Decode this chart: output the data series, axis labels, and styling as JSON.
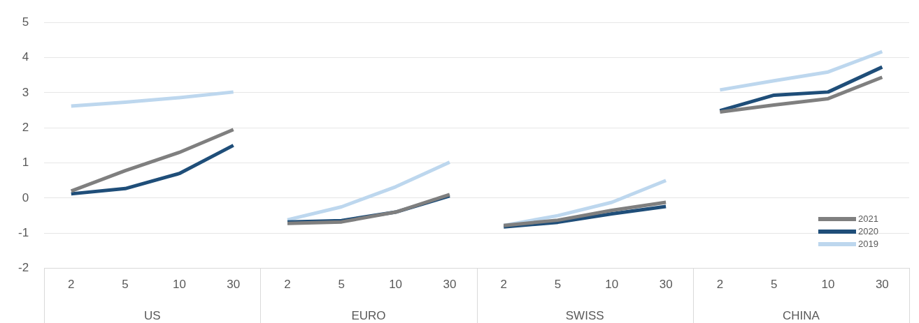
{
  "chart_data": {
    "type": "line",
    "categories": [
      "2",
      "5",
      "10",
      "30",
      "2",
      "5",
      "10",
      "30",
      "2",
      "5",
      "10",
      "30",
      "2",
      "5",
      "10",
      "30"
    ],
    "annotations": [
      "US",
      "EURO",
      "SWISS",
      "CHINA"
    ],
    "series": [
      {
        "name": "2021",
        "color": "#7f7f7f",
        "values": [
          0.2,
          0.78,
          1.3,
          1.95,
          -0.72,
          -0.68,
          -0.4,
          0.1,
          -0.78,
          -0.63,
          -0.35,
          -0.12,
          2.45,
          2.65,
          2.83,
          3.44
        ]
      },
      {
        "name": "2020",
        "color": "#1f4e79",
        "values": [
          0.12,
          0.27,
          0.7,
          1.5,
          -0.68,
          -0.64,
          -0.4,
          0.06,
          -0.82,
          -0.69,
          -0.45,
          -0.24,
          2.49,
          2.93,
          3.02,
          3.73
        ]
      },
      {
        "name": "2019",
        "color": "#bdd7ee",
        "values": [
          2.62,
          2.73,
          2.86,
          3.02,
          -0.62,
          -0.25,
          0.32,
          1.02,
          -0.78,
          -0.5,
          -0.12,
          0.5,
          3.08,
          3.34,
          3.59,
          4.17
        ]
      }
    ],
    "ylim": [
      -2,
      5
    ],
    "yticks": [
      -2,
      -1,
      0,
      1,
      2,
      3,
      4,
      5
    ],
    "grid": "y",
    "legend": "bottom right",
    "marker": "none",
    "line_style": "solid"
  }
}
